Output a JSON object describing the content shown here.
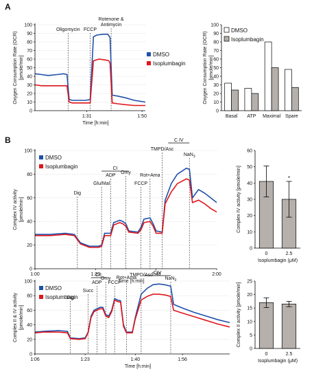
{
  "panel_labels": [
    "A",
    "B"
  ],
  "colors": {
    "dmso": "#1f4fa8",
    "iso": "#e0161b",
    "bar_dmso": "#ffffff",
    "bar_iso": "#b5b0ac"
  },
  "chart_data": [
    {
      "id": "a1",
      "type": "line",
      "ylabel": [
        "Oxygen Consumption Rate (OCR)",
        "[pmole/min]"
      ],
      "xlabel": "Time [h:min]",
      "ylim": [
        0,
        100
      ],
      "yticks": [
        0,
        10,
        20,
        30,
        40,
        50,
        60,
        70,
        80,
        90,
        100
      ],
      "xlim": [
        0,
        100
      ],
      "xticks": [
        {
          "x": 47,
          "label": "1:31"
        },
        {
          "x": 97,
          "label": "1:50"
        }
      ],
      "annotations": [
        {
          "x": 30,
          "lines": [
            "Oligomycin"
          ]
        },
        {
          "x": 50,
          "lines": [
            "FCCP"
          ]
        },
        {
          "x": 69,
          "lines": [
            "Rotenone &",
            "Antimycin"
          ]
        }
      ],
      "legend": {
        "position": "right",
        "entries": [
          "DMSO",
          "Isoplumbagin"
        ]
      },
      "series": [
        {
          "name": "DMSO",
          "points": [
            [
              0,
              43
            ],
            [
              6,
              42
            ],
            [
              12,
              41
            ],
            [
              20,
              42
            ],
            [
              26,
              43
            ],
            [
              29,
              42
            ],
            [
              31,
              13
            ],
            [
              34,
              12
            ],
            [
              40,
              12
            ],
            [
              46,
              12
            ],
            [
              50,
              13
            ],
            [
              53,
              86
            ],
            [
              56,
              88
            ],
            [
              62,
              89
            ],
            [
              66,
              89
            ],
            [
              68,
              85
            ],
            [
              70,
              18
            ],
            [
              75,
              17
            ],
            [
              82,
              15
            ],
            [
              90,
              12
            ],
            [
              100,
              10
            ]
          ]
        },
        {
          "name": "Isoplumbagin",
          "points": [
            [
              0,
              30
            ],
            [
              6,
              29
            ],
            [
              12,
              29
            ],
            [
              20,
              29
            ],
            [
              26,
              29
            ],
            [
              29,
              29
            ],
            [
              31,
              10
            ],
            [
              34,
              9
            ],
            [
              40,
              9
            ],
            [
              46,
              9
            ],
            [
              50,
              9
            ],
            [
              53,
              58
            ],
            [
              58,
              60
            ],
            [
              64,
              59
            ],
            [
              67,
              58
            ],
            [
              68,
              55
            ],
            [
              70,
              9
            ],
            [
              75,
              8
            ],
            [
              82,
              7
            ],
            [
              90,
              6
            ],
            [
              100,
              6
            ]
          ]
        }
      ]
    },
    {
      "id": "a2",
      "type": "bar",
      "ylabel": [
        "Oxygen Consumption Rate (OCR)",
        "[pmole/min]"
      ],
      "ylim": [
        0,
        100
      ],
      "yticks": [
        0,
        10,
        20,
        30,
        40,
        50,
        60,
        70,
        80,
        90,
        100
      ],
      "categories": [
        "Basal",
        "ATP",
        "Maximal",
        "Spare"
      ],
      "legend": {
        "position": "top-left",
        "entries": [
          "DMSO",
          "Isoplumbagin"
        ]
      },
      "series": [
        {
          "name": "DMSO",
          "values": [
            32,
            26,
            80,
            48
          ]
        },
        {
          "name": "Isoplumbagin",
          "values": [
            24,
            20,
            50,
            27
          ]
        }
      ]
    },
    {
      "id": "b1",
      "type": "line",
      "ylabel": [
        "Complex IV activity",
        "[pmole/min]"
      ],
      "xlabel": "Time [h:min]",
      "ylim": [
        0,
        100
      ],
      "yticks": [
        0,
        20,
        40,
        60,
        80,
        100
      ],
      "xlim": [
        0,
        60
      ],
      "xticks": [
        {
          "x": 0,
          "label": "1:00"
        },
        {
          "x": 20,
          "label": "1:20"
        },
        {
          "x": 40,
          "label": "1:40"
        },
        {
          "x": 60,
          "label": "2:00"
        }
      ],
      "annotations": [
        {
          "x": 14,
          "lines": [
            "Dig"
          ]
        },
        {
          "x": 22,
          "lines": [
            "Glu/Mal"
          ]
        },
        {
          "x": 25,
          "lines": [
            "ADP"
          ]
        },
        {
          "x": 30,
          "lines": [
            "Omy"
          ]
        },
        {
          "x": 35,
          "lines": [
            "FCCP"
          ]
        },
        {
          "x": 38,
          "lines": [
            "Rot+Ama"
          ]
        },
        {
          "x": 42,
          "lines": [
            "TMPD/Asc"
          ]
        },
        {
          "x": 51,
          "lines": [
            "NaN3"
          ]
        }
      ],
      "brackets": [
        {
          "x0": 22,
          "x1": 31,
          "label": "CI"
        },
        {
          "x0": 44,
          "x1": 51,
          "label": "C IV"
        }
      ],
      "legend": {
        "position": "top-left",
        "entries": [
          "DMSO",
          "Isoplumbagin"
        ]
      },
      "series": [
        {
          "name": "DMSO",
          "points": [
            [
              0,
              29
            ],
            [
              5,
              29
            ],
            [
              10,
              30
            ],
            [
              13,
              29
            ],
            [
              15,
              22
            ],
            [
              18,
              19
            ],
            [
              21,
              19
            ],
            [
              22,
              20
            ],
            [
              23,
              30
            ],
            [
              25,
              30
            ],
            [
              26,
              39
            ],
            [
              28,
              41
            ],
            [
              29,
              40
            ],
            [
              30,
              38
            ],
            [
              31,
              32
            ],
            [
              34,
              31
            ],
            [
              35,
              35
            ],
            [
              36,
              42
            ],
            [
              38,
              43
            ],
            [
              39,
              38
            ],
            [
              40,
              32
            ],
            [
              42,
              31
            ],
            [
              43,
              58
            ],
            [
              45,
              72
            ],
            [
              47,
              80
            ],
            [
              50,
              85
            ],
            [
              51,
              84
            ],
            [
              52,
              60
            ],
            [
              54,
              67
            ],
            [
              56,
              64
            ],
            [
              58,
              60
            ],
            [
              60,
              56
            ]
          ]
        },
        {
          "name": "Isoplumbagin",
          "points": [
            [
              0,
              28
            ],
            [
              5,
              28
            ],
            [
              10,
              29
            ],
            [
              13,
              28
            ],
            [
              15,
              21
            ],
            [
              18,
              18
            ],
            [
              21,
              18
            ],
            [
              22,
              19
            ],
            [
              23,
              28
            ],
            [
              25,
              28
            ],
            [
              26,
              37
            ],
            [
              28,
              39
            ],
            [
              29,
              38
            ],
            [
              30,
              36
            ],
            [
              31,
              31
            ],
            [
              34,
              30
            ],
            [
              35,
              33
            ],
            [
              36,
              39
            ],
            [
              38,
              40
            ],
            [
              39,
              36
            ],
            [
              40,
              30
            ],
            [
              42,
              30
            ],
            [
              43,
              55
            ],
            [
              45,
              65
            ],
            [
              47,
              72
            ],
            [
              50,
              76
            ],
            [
              51,
              75
            ],
            [
              52,
              56
            ],
            [
              54,
              58
            ],
            [
              56,
              55
            ],
            [
              58,
              51
            ],
            [
              60,
              48
            ]
          ]
        }
      ]
    },
    {
      "id": "b2",
      "type": "bar",
      "ylabel": [
        "Complex IV activity [pmole/min]"
      ],
      "xlabel": "Isoplumbagin (μM)",
      "ylim": [
        0,
        60
      ],
      "yticks": [
        0,
        10,
        20,
        30,
        40,
        50,
        60
      ],
      "categories": [
        "0",
        "2.5"
      ],
      "values": [
        41,
        30
      ],
      "errors": [
        9.5,
        11
      ],
      "annotations": [
        {
          "category": "2.5",
          "text": "*"
        }
      ]
    },
    {
      "id": "b3",
      "type": "line",
      "ylabel": [
        "Complex II & IV activity",
        "[pmole/min]"
      ],
      "xlabel": "Time [h:min]",
      "ylim": [
        0,
        100
      ],
      "yticks": [
        0,
        20,
        40,
        60,
        80,
        100
      ],
      "xlim": [
        0,
        66
      ],
      "xticks": [
        {
          "x": 0,
          "label": "1:06"
        },
        {
          "x": 17,
          "label": "1:23"
        },
        {
          "x": 34,
          "label": "1:40"
        },
        {
          "x": 50,
          "label": "1:56"
        }
      ],
      "annotations": [
        {
          "x": 12,
          "lines": [
            "Dig"
          ]
        },
        {
          "x": 18,
          "lines": [
            "Succ"
          ]
        },
        {
          "x": 21,
          "lines": [
            "ADP"
          ]
        },
        {
          "x": 24,
          "lines": [
            "Omy"
          ]
        },
        {
          "x": 27,
          "lines": [
            "FCCP"
          ]
        },
        {
          "x": 31,
          "lines": [
            "Rot+Ama"
          ]
        },
        {
          "x": 36,
          "lines": [
            "TMPD/Asc"
          ]
        },
        {
          "x": 46,
          "lines": [
            "NaN3"
          ]
        }
      ],
      "brackets": [
        {
          "x0": 19,
          "x1": 24,
          "label": "CII"
        },
        {
          "x0": 37,
          "x1": 46,
          "label": "CIV"
        }
      ],
      "legend": {
        "position": "top-left",
        "entries": [
          "DMSO",
          "Isoplumbagin"
        ]
      },
      "series": [
        {
          "name": "DMSO",
          "points": [
            [
              0,
              30
            ],
            [
              3,
              31
            ],
            [
              8,
              32
            ],
            [
              11,
              31
            ],
            [
              12,
              22
            ],
            [
              15,
              21
            ],
            [
              17,
              22
            ],
            [
              18,
              30
            ],
            [
              19,
              52
            ],
            [
              20,
              60
            ],
            [
              21,
              62
            ],
            [
              22,
              64
            ],
            [
              23,
              64
            ],
            [
              24,
              54
            ],
            [
              25,
              52
            ],
            [
              26,
              60
            ],
            [
              27,
              76
            ],
            [
              28,
              74
            ],
            [
              29,
              73
            ],
            [
              30,
              40
            ],
            [
              31,
              30
            ],
            [
              32,
              30
            ],
            [
              33,
              30
            ],
            [
              34,
              50
            ],
            [
              36,
              82
            ],
            [
              38,
              90
            ],
            [
              40,
              95
            ],
            [
              42,
              96
            ],
            [
              44,
              95
            ],
            [
              46,
              93
            ],
            [
              47,
              68
            ],
            [
              50,
              63
            ],
            [
              54,
              57
            ],
            [
              58,
              52
            ],
            [
              62,
              47
            ],
            [
              66,
              43
            ]
          ]
        },
        {
          "name": "Isoplumbagin",
          "points": [
            [
              0,
              29
            ],
            [
              3,
              30
            ],
            [
              8,
              30
            ],
            [
              11,
              29
            ],
            [
              12,
              21
            ],
            [
              15,
              20
            ],
            [
              17,
              21
            ],
            [
              18,
              29
            ],
            [
              19,
              50
            ],
            [
              20,
              58
            ],
            [
              21,
              60
            ],
            [
              22,
              62
            ],
            [
              23,
              62
            ],
            [
              24,
              52
            ],
            [
              25,
              50
            ],
            [
              26,
              58
            ],
            [
              27,
              74
            ],
            [
              28,
              72
            ],
            [
              29,
              71
            ],
            [
              30,
              38
            ],
            [
              31,
              29
            ],
            [
              32,
              29
            ],
            [
              33,
              29
            ],
            [
              34,
              48
            ],
            [
              36,
              74
            ],
            [
              38,
              79
            ],
            [
              40,
              82
            ],
            [
              42,
              82
            ],
            [
              44,
              81
            ],
            [
              46,
              79
            ],
            [
              47,
              60
            ],
            [
              50,
              56
            ],
            [
              54,
              51
            ],
            [
              58,
              46
            ],
            [
              62,
              41
            ],
            [
              66,
              37
            ]
          ]
        }
      ]
    },
    {
      "id": "b4",
      "type": "bar",
      "ylabel": [
        "Complex II activity [pmole/min]"
      ],
      "xlabel": "Isoplumbagin (μM)",
      "ylim": [
        0,
        25
      ],
      "yticks": [
        0,
        5,
        10,
        15,
        20,
        25
      ],
      "categories": [
        "0",
        "2.5"
      ],
      "values": [
        17,
        16.5
      ],
      "errors": [
        1.8,
        1.0
      ]
    }
  ]
}
